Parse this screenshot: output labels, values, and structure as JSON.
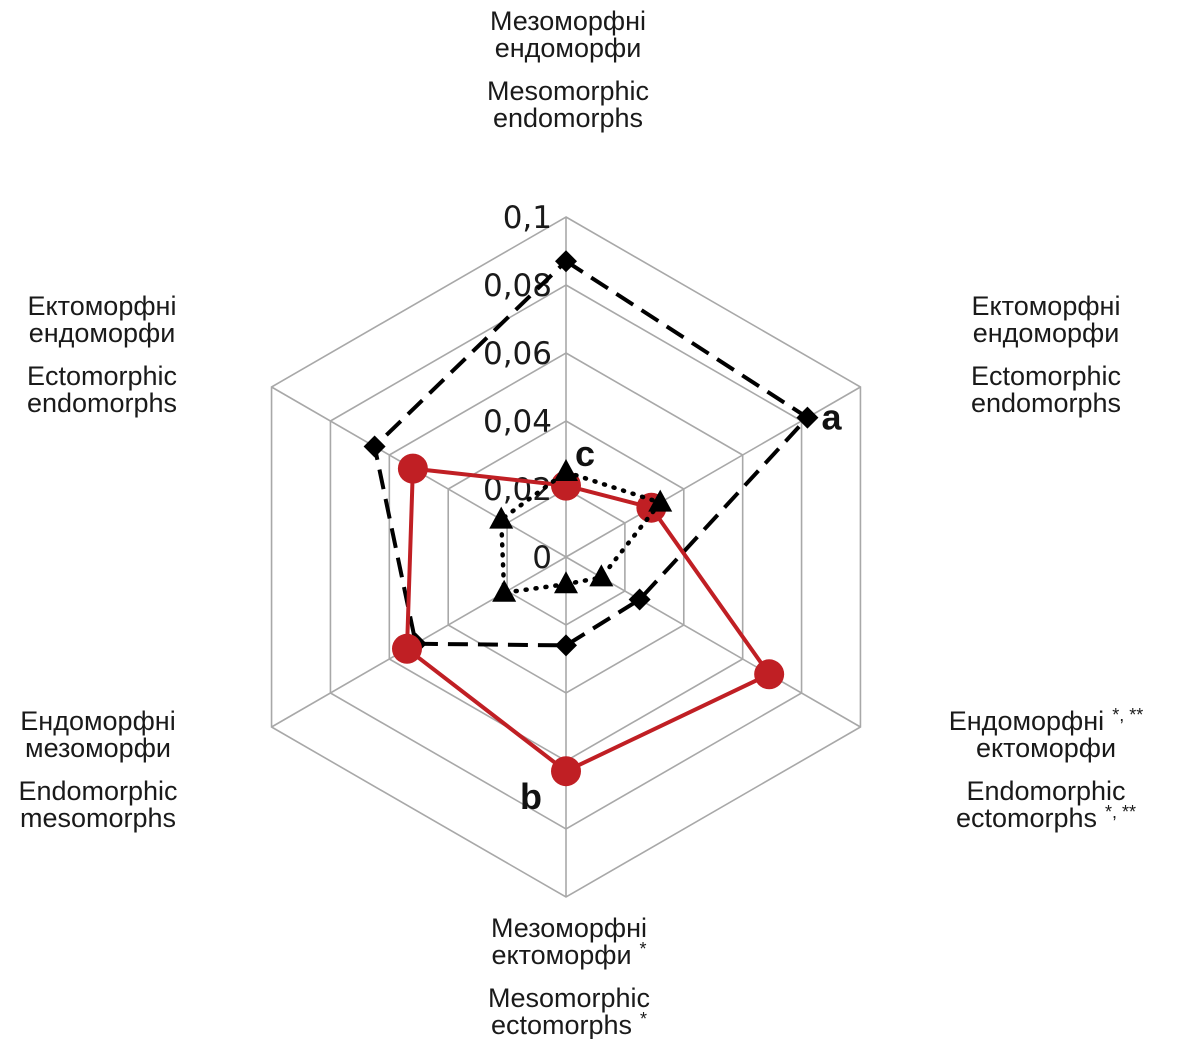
{
  "chart_data": {
    "type": "radar",
    "axes": [
      {
        "uk": [
          "Мезоморфні",
          "ендоморфи"
        ],
        "en": [
          "Mesomorphic",
          "endomorphs"
        ],
        "mark": ""
      },
      {
        "uk": [
          "Ектоморфні",
          "ендоморфи"
        ],
        "en": [
          "Ectomorphic",
          "endomorphs"
        ],
        "mark": ""
      },
      {
        "uk": [
          "Ендоморфні",
          "ектоморфи"
        ],
        "en": [
          "Endomorphic",
          "ectomorphs"
        ],
        "mark": "*, **"
      },
      {
        "uk": [
          "Мезоморфні",
          "ектоморфи"
        ],
        "en": [
          "Mesomorphic",
          "ectomorphs"
        ],
        "mark": "*"
      },
      {
        "uk": [
          "Ендоморфні",
          "мезоморфи"
        ],
        "en": [
          "Endomorphic",
          "mesomorphs"
        ],
        "mark": ""
      },
      {
        "uk": [
          "Ектоморфні",
          "ендоморфи"
        ],
        "en": [
          "Ectomorphic",
          "endomorphs"
        ],
        "mark": ""
      }
    ],
    "ticks": [
      "0",
      "0,02",
      "0,04",
      "0,06",
      "0,08",
      "0,1"
    ],
    "rmax": 0.1,
    "grid": true,
    "series": [
      {
        "id": "a",
        "label": "a",
        "style": "dashed",
        "marker": "diamond",
        "color": "#000000",
        "values": [
          0.087,
          0.082,
          0.025,
          0.026,
          0.051,
          0.065
        ]
      },
      {
        "id": "b",
        "label": "b",
        "style": "solid",
        "marker": "circle",
        "color": "#c01f24",
        "values": [
          0.021,
          0.029,
          0.069,
          0.063,
          0.054,
          0.052
        ]
      },
      {
        "id": "c",
        "label": "c",
        "style": "dotted",
        "marker": "triangle",
        "color": "#000000",
        "values": [
          0.025,
          0.032,
          0.012,
          0.008,
          0.021,
          0.022
        ]
      }
    ]
  }
}
